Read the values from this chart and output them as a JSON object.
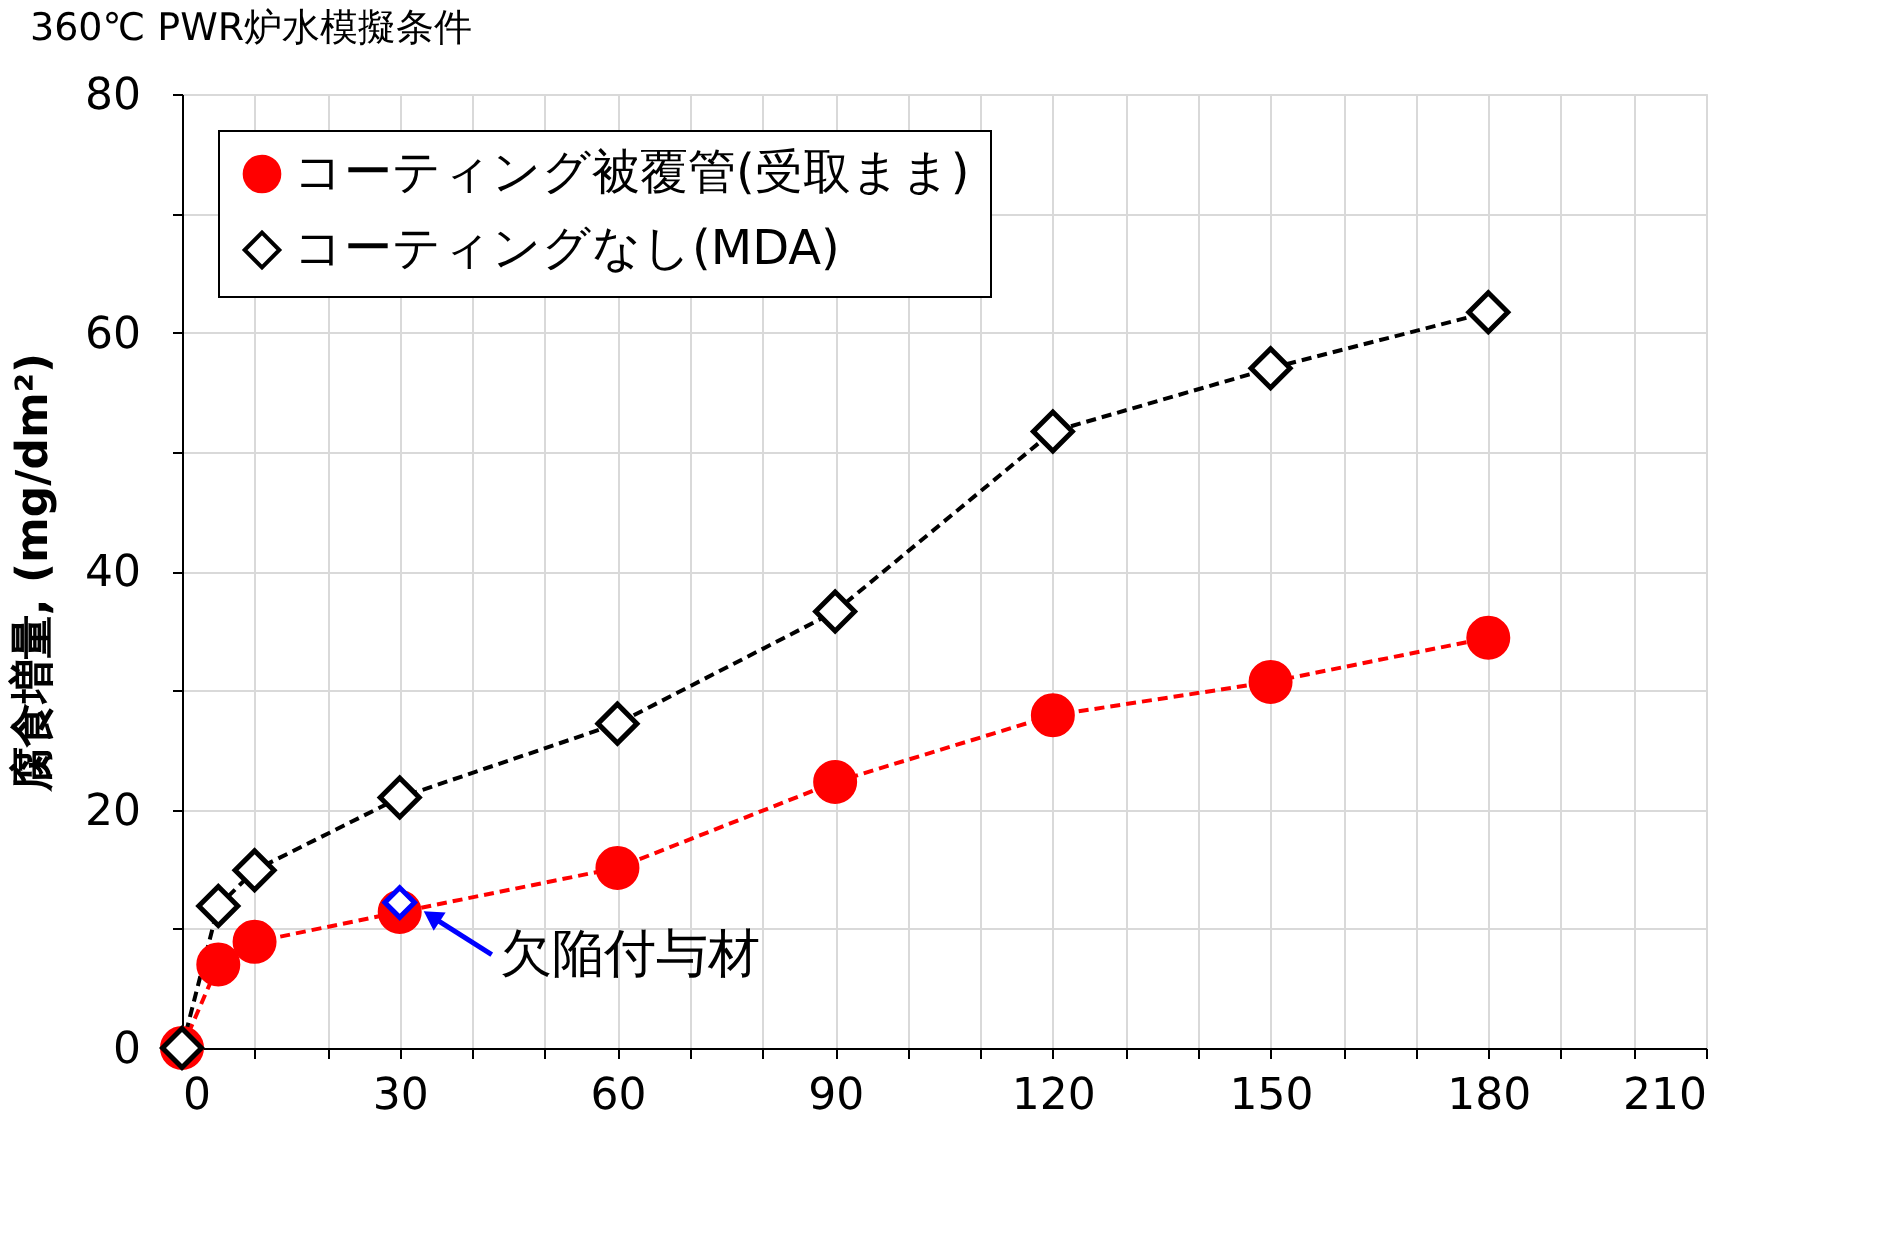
{
  "chart_data": {
    "type": "line",
    "title": "360℃ PWR炉水模擬条件",
    "ylabel": "腐食増量, (mg/dm²)",
    "x": [
      0,
      5,
      10,
      30,
      60,
      90,
      120,
      150,
      180
    ],
    "xlim": [
      0,
      210
    ],
    "ylim": [
      0,
      80
    ],
    "xticks": [
      0,
      {
        "value": 10,
        "label": null
      },
      {
        "value": 20,
        "label": null
      },
      30,
      {
        "value": 40,
        "label": null
      },
      {
        "value": 50,
        "label": null
      },
      60,
      {
        "value": 70,
        "label": null
      },
      {
        "value": 80,
        "label": null
      },
      90,
      {
        "value": 100,
        "label": null
      },
      {
        "value": 110,
        "label": null
      },
      120,
      {
        "value": 130,
        "label": null
      },
      {
        "value": 140,
        "label": null
      },
      150,
      {
        "value": 160,
        "label": null
      },
      {
        "value": 170,
        "label": null
      },
      180,
      {
        "value": 190,
        "label": null
      },
      {
        "value": 200,
        "label": null
      },
      210
    ],
    "yticks": [
      0,
      {
        "value": 10,
        "label": null
      },
      20,
      {
        "value": 30,
        "label": null
      },
      40,
      {
        "value": 50,
        "label": null
      },
      60,
      {
        "value": 70,
        "label": null
      },
      80
    ],
    "grid": true,
    "legend": "top left",
    "line_style": "dashed",
    "series": [
      {
        "name": "コーティング被覆管(受取まま)",
        "color": "#ff0000",
        "marker": "circle",
        "values": [
          0,
          7.0,
          8.9,
          11.4,
          15.1,
          22.3,
          27.9,
          30.7,
          34.4
        ]
      },
      {
        "name": "コーティングなし(MDA)",
        "color": "#000000",
        "marker": "diamond",
        "values": [
          0,
          11.9,
          14.9,
          21.0,
          27.2,
          36.6,
          51.7,
          57.0,
          61.7
        ]
      },
      {
        "type": "scatter",
        "color": "#0000ff",
        "marker": "diamond",
        "x": [
          30
        ],
        "values": [
          12.2
        ]
      }
    ],
    "annotations": [
      {
        "text": "欠陥付与材",
        "x": 30,
        "y": 12.2
      }
    ]
  }
}
